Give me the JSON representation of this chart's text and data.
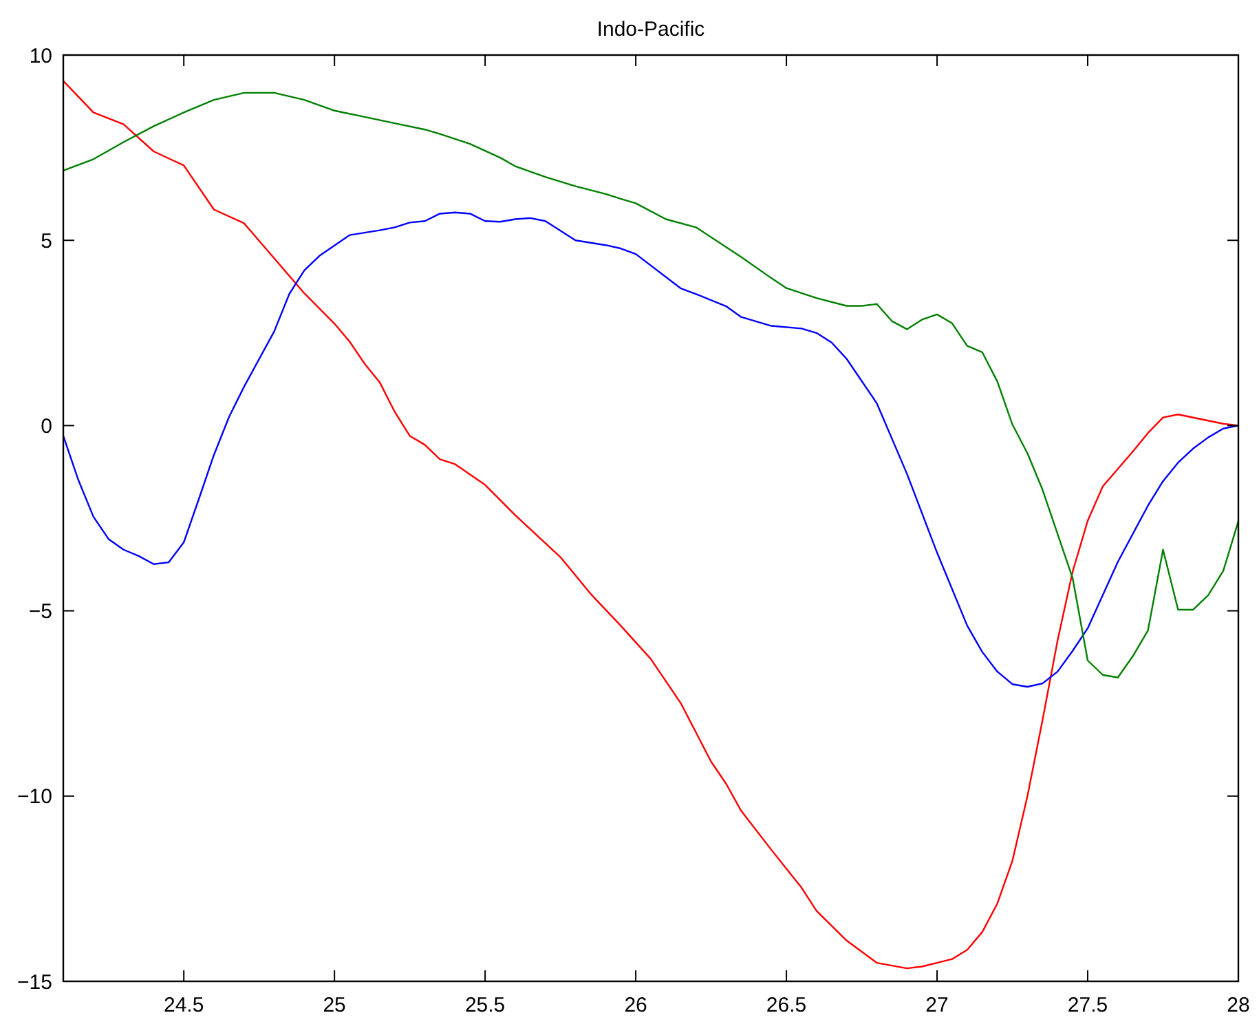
{
  "chart_data": {
    "type": "line",
    "title": "Indo-Pacific",
    "xlim": [
      24.1,
      28
    ],
    "xticks": [
      24.5,
      25,
      25.5,
      26,
      26.5,
      27,
      27.5,
      28
    ],
    "ylim": [
      -15,
      10
    ],
    "yticks": [
      {
        "value": -15,
        "label": "−15"
      },
      {
        "value": -10,
        "label": "−10"
      },
      {
        "value": -5,
        "label": "−5"
      },
      0,
      5,
      10
    ],
    "line_style": "solid",
    "marker": "none",
    "series": [
      {
        "color": "#ff0000",
        "x": [
          24.1,
          24.2,
          24.3,
          24.4,
          24.5,
          24.6,
          24.7,
          24.9,
          25,
          25.05,
          25.1,
          25.15,
          25.2,
          25.25,
          25.3,
          25.35,
          25.4,
          25.5,
          25.6,
          25.75,
          25.85,
          25.95,
          26.05,
          26.15,
          26.25,
          26.3,
          26.35,
          26.45,
          26.55,
          26.6,
          26.7,
          26.8,
          26.9,
          26.95,
          27,
          27.05,
          27.1,
          27.15,
          27.2,
          27.25,
          27.3,
          27.35,
          27.4,
          27.45,
          27.5,
          27.55,
          27.65,
          27.7,
          27.75,
          27.8,
          27.95,
          28
        ],
        "values": [
          9.3,
          8.45,
          8.13,
          7.4,
          7.02,
          5.83,
          5.46,
          3.57,
          2.75,
          2.27,
          1.67,
          1.17,
          0.37,
          -0.28,
          -0.52,
          -0.91,
          -1.04,
          -1.6,
          -2.42,
          -3.55,
          -4.54,
          -5.4,
          -6.3,
          -7.5,
          -9.07,
          -9.67,
          -10.4,
          -11.45,
          -12.47,
          -13.1,
          -13.9,
          -14.5,
          -14.65,
          -14.6,
          -14.5,
          -14.4,
          -14.15,
          -13.67,
          -12.9,
          -11.75,
          -10,
          -7.95,
          -5.8,
          -3.94,
          -2.57,
          -1.64,
          -0.7,
          -0.2,
          0.22,
          0.3,
          0.05,
          0
        ]
      },
      {
        "color": "#0000ff",
        "x": [
          24.1,
          24.15,
          24.2,
          24.25,
          24.3,
          24.35,
          24.4,
          24.45,
          24.5,
          24.55,
          24.6,
          24.65,
          24.7,
          24.8,
          24.85,
          24.9,
          24.95,
          25.05,
          25.15,
          25.2,
          25.25,
          25.3,
          25.35,
          25.4,
          25.45,
          25.5,
          25.55,
          25.6,
          25.65,
          25.7,
          25.8,
          25.9,
          25.95,
          26,
          26.15,
          26.2,
          26.3,
          26.35,
          26.45,
          26.55,
          26.6,
          26.65,
          26.7,
          26.8,
          26.9,
          27,
          27.1,
          27.15,
          27.2,
          27.25,
          27.3,
          27.35,
          27.4,
          27.45,
          27.5,
          27.6,
          27.7,
          27.75,
          27.8,
          27.85,
          27.9,
          27.95,
          28
        ],
        "values": [
          -0.28,
          -1.47,
          -2.46,
          -3.06,
          -3.35,
          -3.52,
          -3.74,
          -3.69,
          -3.15,
          -1.98,
          -0.79,
          0.23,
          1.05,
          2.54,
          3.55,
          4.19,
          4.58,
          5.14,
          5.27,
          5.35,
          5.48,
          5.52,
          5.72,
          5.75,
          5.72,
          5.52,
          5.5,
          5.57,
          5.6,
          5.52,
          5,
          4.87,
          4.78,
          4.63,
          3.7,
          3.55,
          3.22,
          2.93,
          2.69,
          2.62,
          2.5,
          2.24,
          1.8,
          0.6,
          -1.3,
          -3.43,
          -5.4,
          -6.11,
          -6.64,
          -6.98,
          -7.05,
          -6.96,
          -6.64,
          -6.08,
          -5.47,
          -3.68,
          -2.16,
          -1.5,
          -1,
          -0.62,
          -0.32,
          -0.08,
          0
        ]
      },
      {
        "color": "#008000",
        "x": [
          24.1,
          24.2,
          24.3,
          24.4,
          24.5,
          24.6,
          24.7,
          24.8,
          24.9,
          25,
          25.1,
          25.2,
          25.3,
          25.35,
          25.45,
          25.55,
          25.6,
          25.7,
          25.8,
          25.9,
          25.95,
          26,
          26.1,
          26.2,
          26.35,
          26.45,
          26.5,
          26.6,
          26.7,
          26.75,
          26.8,
          26.85,
          26.9,
          26.95,
          27,
          27.05,
          27.1,
          27.15,
          27.2,
          27.25,
          27.3,
          27.35,
          27.45,
          27.5,
          27.55,
          27.6,
          27.65,
          27.7,
          27.75,
          27.8,
          27.85,
          27.9,
          27.95,
          28
        ],
        "values": [
          6.88,
          7.19,
          7.65,
          8.08,
          8.45,
          8.79,
          8.98,
          8.98,
          8.79,
          8.5,
          8.33,
          8.16,
          7.99,
          7.87,
          7.6,
          7.23,
          7,
          6.71,
          6.46,
          6.25,
          6.12,
          6,
          5.57,
          5.35,
          4.55,
          3.98,
          3.71,
          3.44,
          3.23,
          3.23,
          3.28,
          2.82,
          2.6,
          2.86,
          3,
          2.76,
          2.15,
          1.98,
          1.19,
          0.03,
          -0.75,
          -1.73,
          -4.12,
          -6.34,
          -6.73,
          -6.8,
          -6.22,
          -5.53,
          -3.35,
          -4.97,
          -4.97,
          -4.58,
          -3.92,
          -2.58
        ]
      }
    ]
  }
}
